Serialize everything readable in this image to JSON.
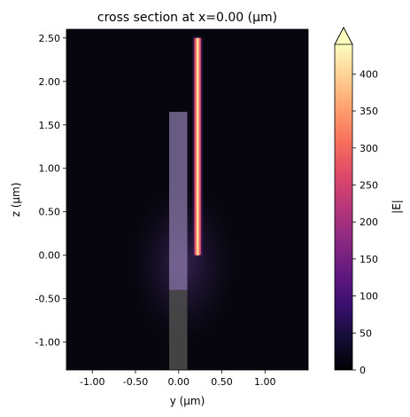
{
  "chart_data": {
    "type": "heatmap",
    "title": "cross section at x=0.00 (µm)",
    "xlabel": "y (µm)",
    "ylabel": "z (µm)",
    "xlim": [
      -1.3,
      1.5
    ],
    "ylim": [
      -1.32,
      2.6
    ],
    "x_ticks": [
      "-1.00",
      "-0.50",
      "0.00",
      "0.50",
      "1.00"
    ],
    "x_tick_values": [
      -1.0,
      -0.5,
      0.0,
      0.5,
      1.0
    ],
    "y_ticks": [
      "-1.00",
      "-0.50",
      "0.00",
      "0.50",
      "1.00",
      "1.50",
      "2.00",
      "2.50"
    ],
    "y_tick_values": [
      -1.0,
      -0.5,
      0.0,
      0.5,
      1.0,
      1.5,
      2.0,
      2.5
    ],
    "colorbar": {
      "label": "|E|",
      "range": [
        0,
        440
      ],
      "ticks": [
        "0",
        "50",
        "100",
        "150",
        "200",
        "250",
        "300",
        "350",
        "400"
      ],
      "tick_values": [
        0,
        50,
        100,
        150,
        200,
        250,
        300,
        350,
        400
      ],
      "colormap": "magma",
      "extend": "max"
    },
    "structures": [
      {
        "name": "upper waveguide",
        "y_range": [
          -0.11,
          0.1
        ],
        "z_range": [
          -0.4,
          1.65
        ],
        "color": "#8a78a8"
      },
      {
        "name": "lower waveguide",
        "y_range": [
          -0.11,
          0.1
        ],
        "z_range": [
          -1.32,
          -0.4
        ],
        "color": "#4a4a4a"
      }
    ],
    "field_hotspot": {
      "y_range": [
        0.18,
        0.26
      ],
      "z_range": [
        0.0,
        2.5
      ],
      "peak": 440
    },
    "background_color": "#07060e"
  }
}
